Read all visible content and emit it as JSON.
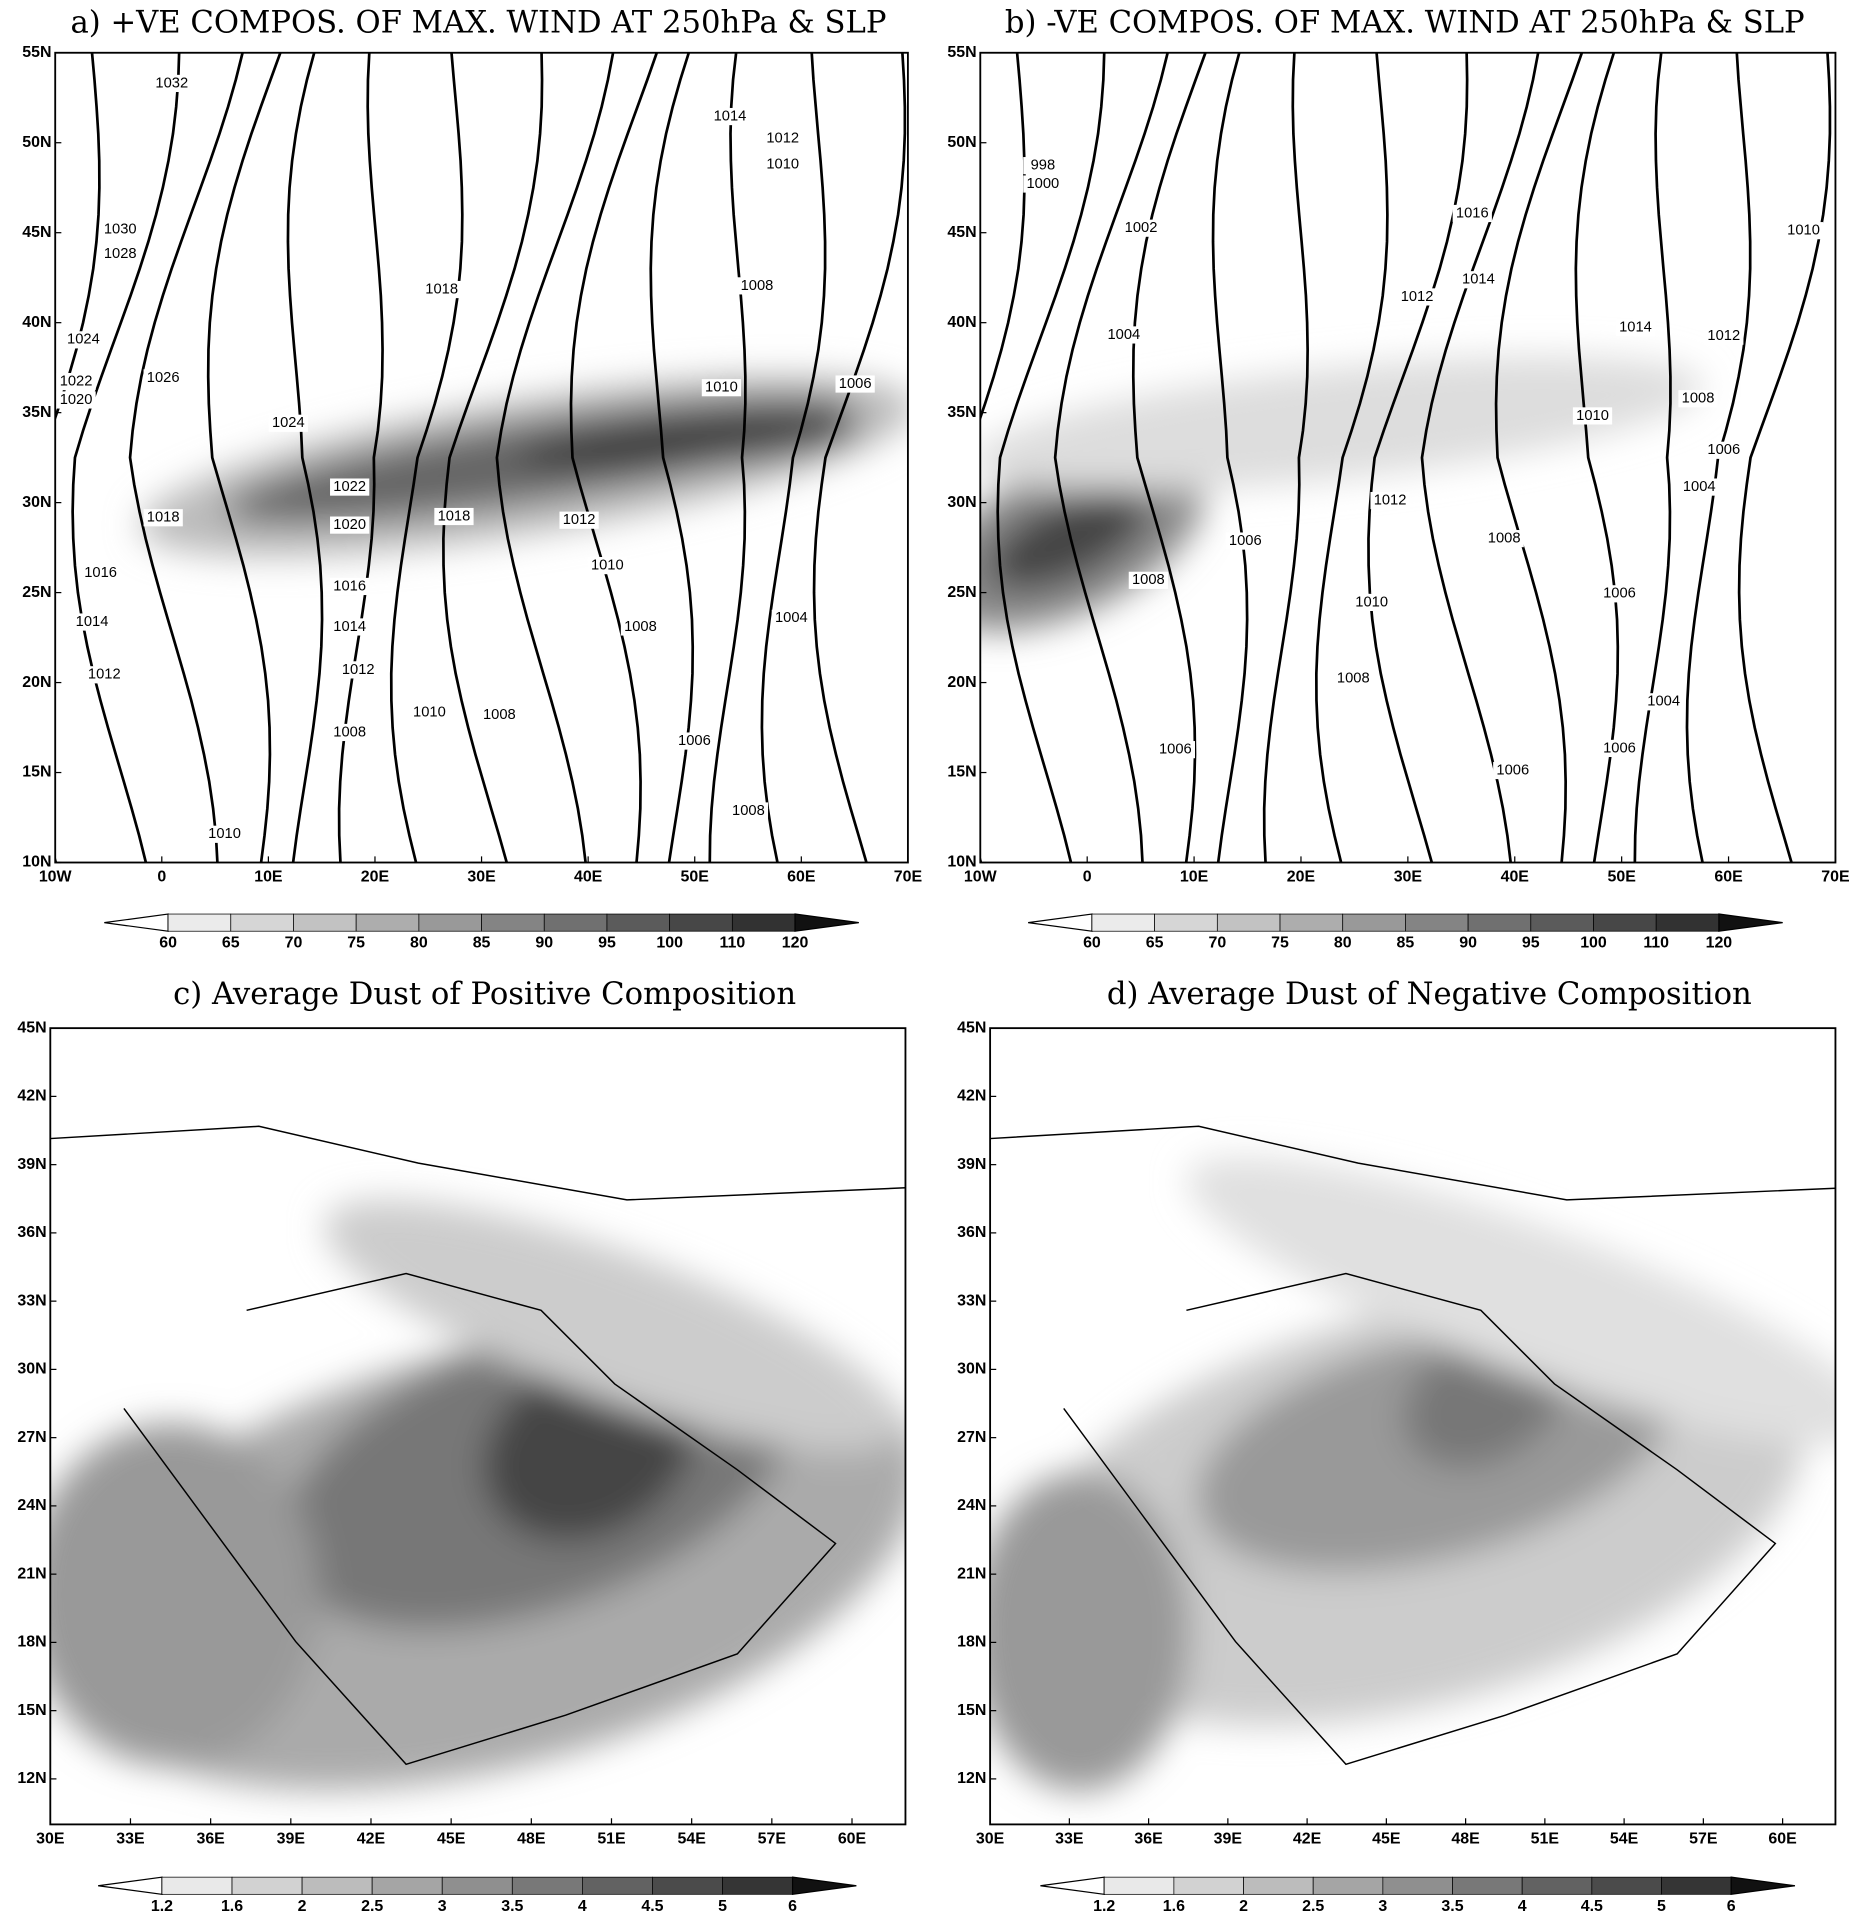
{
  "panels": [
    {
      "title": "a) +VE COMPOS. OF MAX. WIND AT 250hPa & SLP",
      "x_ticks": [
        "10W",
        "0",
        "10E",
        "20E",
        "30E",
        "40E",
        "50E",
        "60E",
        "70E"
      ],
      "y_ticks": [
        "55N",
        "50N",
        "45N",
        "40N",
        "35N",
        "30N",
        "25N",
        "20N",
        "15N",
        "10N"
      ],
      "colorbar": [
        60,
        65,
        70,
        75,
        80,
        85,
        90,
        95,
        100,
        110,
        120
      ],
      "contour_labels": [
        1032,
        1030,
        1028,
        1024,
        1022,
        1020,
        1026,
        1024,
        1018,
        1014,
        1012,
        1010,
        1008,
        1010,
        1006,
        1022,
        1020,
        1018,
        1012,
        1018,
        1016,
        1016,
        1014,
        1014,
        1012,
        1012,
        1010,
        1008,
        1008,
        1010,
        1010,
        1008,
        1004,
        1006,
        1008
      ]
    },
    {
      "title": "b) -VE COMPOS. OF MAX. WIND AT 250hPa & SLP",
      "x_ticks": [
        "10W",
        "0",
        "10E",
        "20E",
        "30E",
        "40E",
        "50E",
        "60E",
        "70E"
      ],
      "y_ticks": [
        "55N",
        "50N",
        "45N",
        "40N",
        "35N",
        "30N",
        "25N",
        "20N",
        "15N",
        "10N"
      ],
      "colorbar": [
        60,
        65,
        70,
        75,
        80,
        85,
        90,
        95,
        100,
        110,
        120
      ],
      "contour_labels": [
        998,
        1000,
        1002,
        1004,
        1016,
        1014,
        1012,
        1014,
        1012,
        1010,
        1008,
        1010,
        1006,
        1004,
        1012,
        1006,
        1008,
        1008,
        1010,
        1006,
        1008,
        1004,
        1006,
        1006,
        1006
      ]
    },
    {
      "title": "c) Average Dust of Positive Composition",
      "x_ticks": [
        "30E",
        "33E",
        "36E",
        "39E",
        "42E",
        "45E",
        "48E",
        "51E",
        "54E",
        "57E",
        "60E"
      ],
      "y_ticks": [
        "45N",
        "42N",
        "39N",
        "36N",
        "33N",
        "30N",
        "27N",
        "24N",
        "21N",
        "18N",
        "15N",
        "12N"
      ],
      "colorbar": [
        1.2,
        1.6,
        2,
        2.5,
        3,
        3.5,
        4,
        4.5,
        5,
        6
      ]
    },
    {
      "title": "d) Average Dust of Negative Composition",
      "x_ticks": [
        "30E",
        "33E",
        "36E",
        "39E",
        "42E",
        "45E",
        "48E",
        "51E",
        "54E",
        "57E",
        "60E"
      ],
      "y_ticks": [
        "45N",
        "42N",
        "39N",
        "36N",
        "33N",
        "30N",
        "27N",
        "24N",
        "21N",
        "18N",
        "15N",
        "12N"
      ],
      "colorbar": [
        1.2,
        1.6,
        2,
        2.5,
        3,
        3.5,
        4,
        4.5,
        5,
        6
      ]
    }
  ]
}
